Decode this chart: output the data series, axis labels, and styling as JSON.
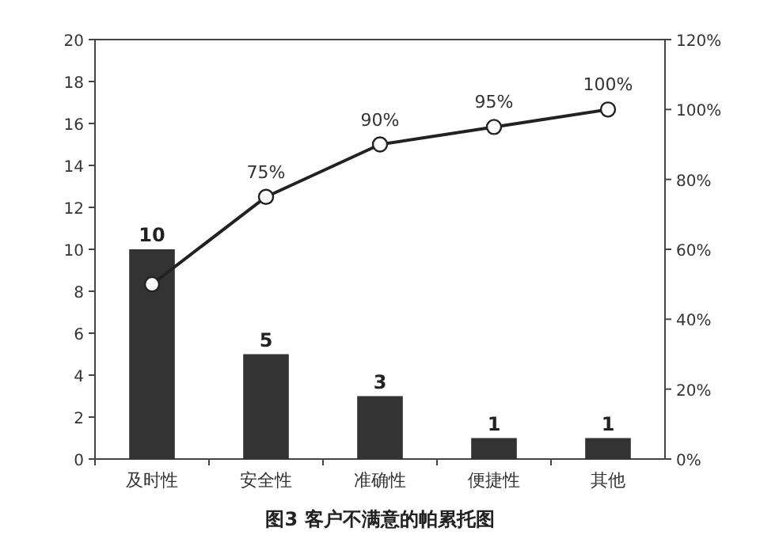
{
  "chart_data": {
    "type": "bar",
    "title": "图3 客户不满意的帕累托图",
    "categories": [
      "及时性",
      "安全性",
      "准确性",
      "便捷性",
      "其他"
    ],
    "ylim": [
      0,
      20
    ],
    "yticks": [
      0,
      2,
      4,
      6,
      8,
      10,
      12,
      14,
      16,
      18,
      20
    ],
    "y2lim": [
      0,
      120
    ],
    "y2ticks": [
      {
        "value": 0,
        "label": "0%"
      },
      {
        "value": 20,
        "label": "20%"
      },
      {
        "value": 40,
        "label": "40%"
      },
      {
        "value": 60,
        "label": "60%"
      },
      {
        "value": 80,
        "label": "80%"
      },
      {
        "value": 100,
        "label": "100%"
      },
      {
        "value": 120,
        "label": "120%"
      }
    ],
    "series": [
      {
        "color": "#333333",
        "values": [
          10,
          5,
          3,
          1,
          1
        ],
        "value_labels": [
          "10",
          "5",
          "3",
          "1",
          "1"
        ]
      },
      {
        "type": "line",
        "axis": "y2",
        "color": "#222222",
        "marker": "circle",
        "values": [
          50,
          75,
          90,
          95,
          100
        ],
        "value_labels": [
          null,
          "75%",
          "90%",
          "95%",
          "100%"
        ]
      }
    ]
  }
}
